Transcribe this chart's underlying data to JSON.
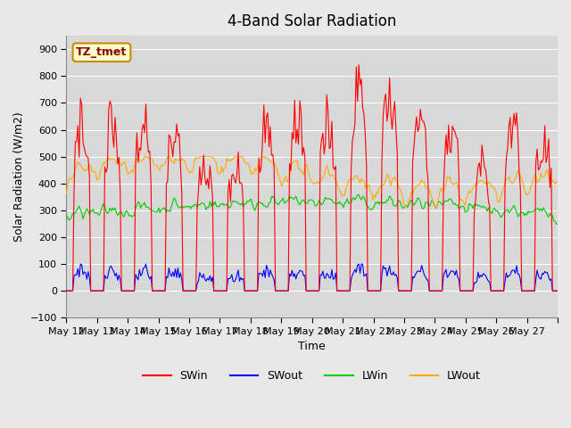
{
  "title": "4-Band Solar Radiation",
  "xlabel": "Time",
  "ylabel": "Solar Radiation (W/m2)",
  "annotation": "TZ_tmet",
  "ylim": [
    -100,
    950
  ],
  "background_color": "#e8e8e8",
  "plot_bg_color": "#d8d8d8",
  "legend_entries": [
    "SWin",
    "SWout",
    "LWin",
    "LWout"
  ],
  "legend_colors": [
    "#ff0000",
    "#0000ff",
    "#00cc00",
    "#ffaa00"
  ],
  "line_colors": {
    "SWin": "#ff0000",
    "SWout": "#0000ff",
    "LWin": "#00cc00",
    "LWout": "#ffaa00"
  },
  "x_tick_labels": [
    "May 12",
    "May 13",
    "May 14",
    "May 15",
    "May 16",
    "May 17",
    "May 18",
    "May 19",
    "May 20",
    "May 21",
    "May 22",
    "May 23",
    "May 24",
    "May 25",
    "May 26",
    "May 27"
  ],
  "yticks": [
    -100,
    0,
    100,
    200,
    300,
    400,
    500,
    600,
    700,
    800,
    900
  ]
}
